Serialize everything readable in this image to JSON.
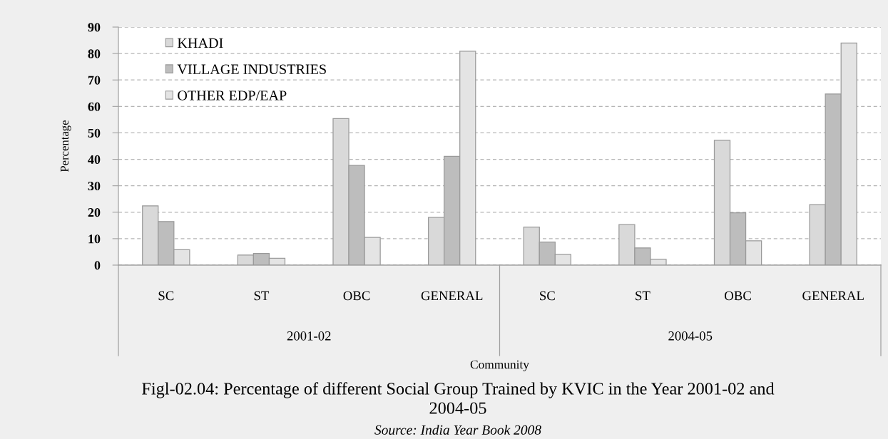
{
  "chart_data": {
    "type": "bar",
    "title": "Figl-02.04: Percentage of different Social Group Trained by KVIC in the Year 2001-02 and\n2004-05",
    "xlabel": "Community",
    "ylabel": "Percentage",
    "categories": [
      "SC",
      "ST",
      "OBC",
      "GENERAL",
      "SC",
      "ST",
      "OBC",
      "GENERAL"
    ],
    "series": [
      {
        "name": "KHADI",
        "color": "#d9d9d9",
        "values": [
          22.4,
          3.8,
          55.4,
          18.0,
          14.4,
          15.3,
          47.2,
          22.9
        ]
      },
      {
        "name": "VILLAGE INDUSTRIES",
        "color": "#bdbdbd",
        "values": [
          16.5,
          4.4,
          37.7,
          41.1,
          8.7,
          6.5,
          19.8,
          64.7
        ]
      },
      {
        "name": "OTHER EDP/EAP",
        "color": "#e4e4e4",
        "values": [
          5.8,
          2.6,
          10.5,
          80.9,
          4.0,
          2.2,
          9.2,
          84.0
        ]
      }
    ],
    "ylim": [
      0,
      90
    ],
    "yticks": [
      0,
      10,
      20,
      30,
      40,
      50,
      60,
      70,
      80,
      90
    ],
    "grid": "y",
    "legend": "top left",
    "annotations": [
      "2001-02",
      "2004-05",
      "Source: India Year Book 2008"
    ]
  }
}
